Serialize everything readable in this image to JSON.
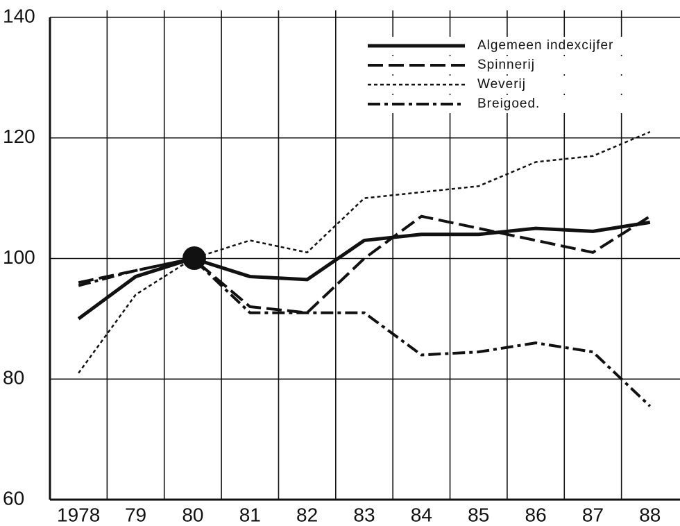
{
  "chart_data": {
    "type": "line",
    "categories": [
      "1978",
      "79",
      "80",
      "81",
      "82",
      "83",
      "84",
      "85",
      "86",
      "87",
      "88"
    ],
    "series": [
      {
        "name": "Algemeen indexcijfer",
        "color": "#111111",
        "line_style": "solid",
        "values": [
          90,
          97,
          100,
          97,
          96.5,
          103,
          104,
          104,
          105,
          104.5,
          106
        ]
      },
      {
        "name": "Spinnerij",
        "color": "#111111",
        "line_style": "dashed",
        "values": [
          96,
          98,
          100,
          92,
          91,
          100,
          107,
          105,
          103,
          101,
          107
        ]
      },
      {
        "name": "Weverij",
        "color": "#111111",
        "line_style": "dotted",
        "values": [
          81,
          94,
          100,
          103,
          101,
          110,
          111,
          112,
          116,
          117,
          121
        ]
      },
      {
        "name": "Breigoed.",
        "color": "#111111",
        "line_style": "dashdot",
        "values": [
          95.5,
          98,
          100,
          91,
          91,
          91,
          84,
          84.5,
          86,
          84.5,
          75.5
        ]
      }
    ],
    "ylim": [
      60,
      140
    ],
    "yticks": [
      60,
      80,
      100,
      120,
      140
    ],
    "grid": true
  }
}
